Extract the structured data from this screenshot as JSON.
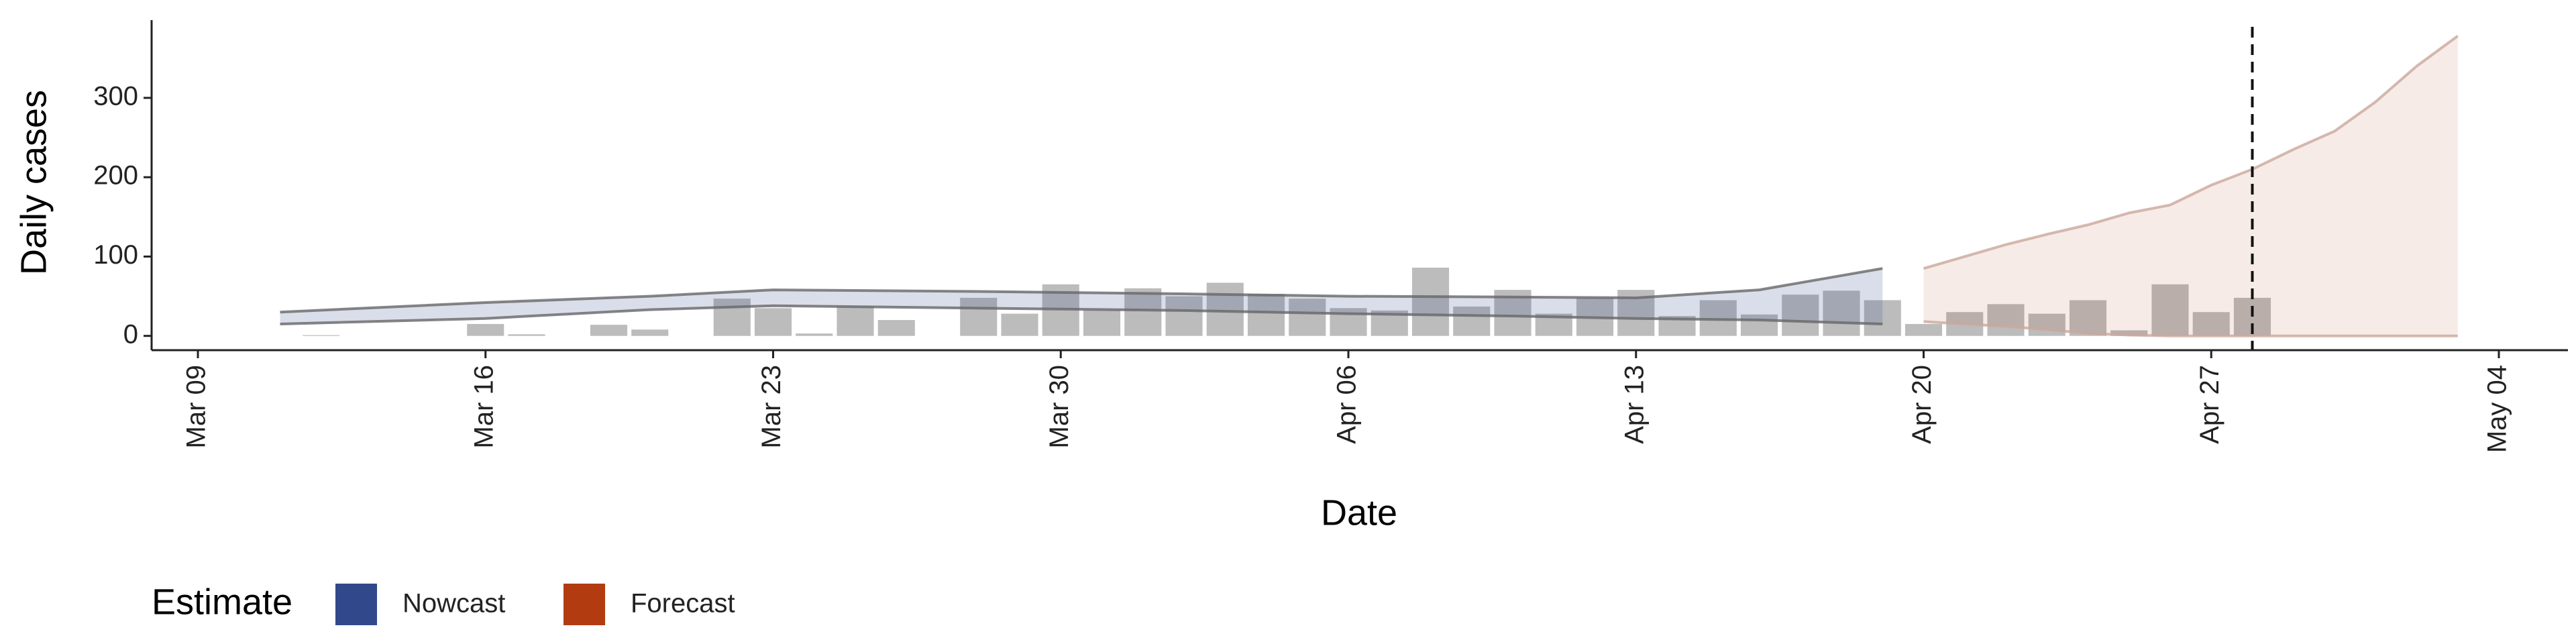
{
  "chart_data": {
    "type": "bar-band",
    "x_label": "Date",
    "y_label": "Daily cases",
    "categories": [
      "Mar 09",
      "Mar 10",
      "Mar 11",
      "Mar 12",
      "Mar 13",
      "Mar 14",
      "Mar 15",
      "Mar 16",
      "Mar 17",
      "Mar 18",
      "Mar 19",
      "Mar 20",
      "Mar 21",
      "Mar 22",
      "Mar 23",
      "Mar 24",
      "Mar 25",
      "Mar 26",
      "Mar 27",
      "Mar 28",
      "Mar 29",
      "Mar 30",
      "Mar 31",
      "Apr 01",
      "Apr 02",
      "Apr 03",
      "Apr 04",
      "Apr 05",
      "Apr 06",
      "Apr 07",
      "Apr 08",
      "Apr 09",
      "Apr 10",
      "Apr 11",
      "Apr 12",
      "Apr 13",
      "Apr 14",
      "Apr 15",
      "Apr 16",
      "Apr 17",
      "Apr 18",
      "Apr 19",
      "Apr 20",
      "Apr 21",
      "Apr 22",
      "Apr 23",
      "Apr 24",
      "Apr 25",
      "Apr 26",
      "Apr 27",
      "Apr 28",
      "Apr 29",
      "Apr 30",
      "May 01",
      "May 02",
      "May 03",
      "May 04"
    ],
    "bars": {
      "color": "#a6a6a6",
      "values": [
        null,
        null,
        null,
        1,
        null,
        null,
        null,
        15,
        2,
        null,
        14,
        8,
        null,
        47,
        35,
        3,
        37,
        20,
        null,
        48,
        28,
        65,
        33,
        60,
        50,
        67,
        53,
        47,
        35,
        32,
        86,
        37,
        58,
        28,
        48,
        58,
        25,
        45,
        27,
        52,
        57,
        45,
        15,
        30,
        40,
        28,
        45,
        7,
        65,
        30,
        48,
        null,
        null,
        null,
        null,
        null,
        null
      ]
    },
    "legend_title": "Estimate",
    "series": [
      {
        "name": "Nowcast",
        "color": "#31498a",
        "x": [
          "Mar 11",
          "Mar 16",
          "Mar 20",
          "Mar 23",
          "Mar 28",
          "Apr 02",
          "Apr 06",
          "Apr 10",
          "Apr 13",
          "Apr 16",
          "Apr 19"
        ],
        "upper": [
          30,
          42,
          50,
          58,
          56,
          53,
          50,
          49,
          48,
          58,
          85
        ],
        "lower": [
          15,
          22,
          33,
          38,
          35,
          32,
          28,
          25,
          22,
          20,
          15
        ]
      },
      {
        "name": "Forecast",
        "color": "#b33b10",
        "x": [
          "Apr 20",
          "Apr 21",
          "Apr 22",
          "Apr 23",
          "Apr 24",
          "Apr 25",
          "Apr 26",
          "Apr 27",
          "Apr 28",
          "Apr 29",
          "Apr 30",
          "May 01",
          "May 02",
          "May 03"
        ],
        "upper": [
          85,
          100,
          115,
          128,
          140,
          155,
          165,
          190,
          210,
          235,
          258,
          295,
          340,
          378
        ],
        "lower": [
          18,
          15,
          12,
          8,
          3,
          1,
          0,
          0,
          0,
          0,
          0,
          0,
          0,
          0
        ]
      }
    ],
    "vline": "Apr 28",
    "ylim": [
      -18,
      398
    ],
    "yticks": [
      0,
      100,
      200,
      300
    ],
    "xticks": [
      "Mar 09",
      "Mar 16",
      "Mar 23",
      "Mar 30",
      "Apr 06",
      "Apr 13",
      "Apr 20",
      "Apr 27",
      "May 04"
    ],
    "legend_position": "bottom-left"
  }
}
